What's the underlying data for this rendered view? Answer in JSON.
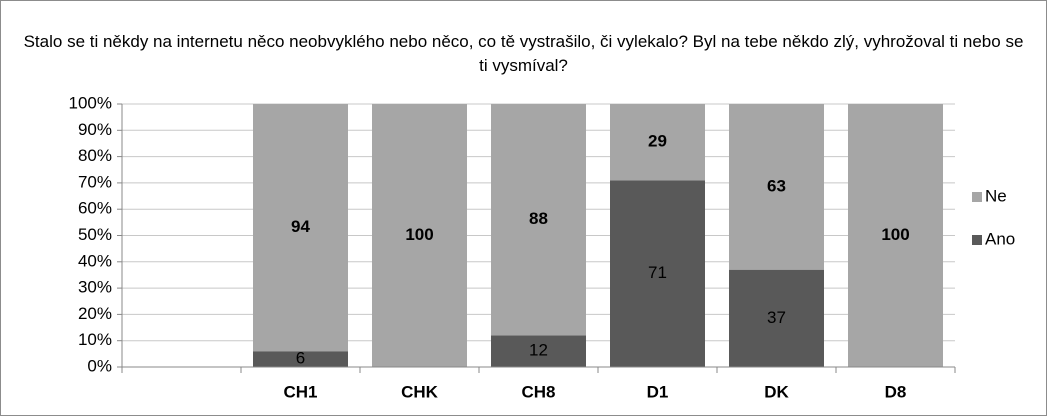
{
  "chart_data": {
    "type": "stacked_bar",
    "title": "Stalo se ti někdy na internetu něco neobvyklého nebo něco, co tě vystrašilo, či vylekalo? Byl na tebe někdo zlý, vyhrožoval ti nebo se ti vysmíval?",
    "categories": [
      null,
      "CH1",
      "CHK",
      "CH8",
      "D1",
      "DK",
      "D8"
    ],
    "series": [
      {
        "name": "Ano",
        "color": "#595959",
        "label_weight": "normal",
        "values": [
          null,
          6,
          0,
          12,
          71,
          37,
          0
        ]
      },
      {
        "name": "Ne",
        "color": "#a6a6a6",
        "label_weight": "bold",
        "values": [
          null,
          94,
          100,
          88,
          29,
          63,
          100
        ]
      }
    ],
    "ylim": [
      0,
      100
    ],
    "yticks": [
      {
        "value": 0,
        "label": "0%"
      },
      {
        "value": 10,
        "label": "10%"
      },
      {
        "value": 20,
        "label": "20%"
      },
      {
        "value": 30,
        "label": "30%"
      },
      {
        "value": 40,
        "label": "40%"
      },
      {
        "value": 50,
        "label": "50%"
      },
      {
        "value": 60,
        "label": "60%"
      },
      {
        "value": 70,
        "label": "70%"
      },
      {
        "value": 80,
        "label": "80%"
      },
      {
        "value": 90,
        "label": "90%"
      },
      {
        "value": 100,
        "label": "100%"
      }
    ],
    "grid": true,
    "legend": "right"
  }
}
